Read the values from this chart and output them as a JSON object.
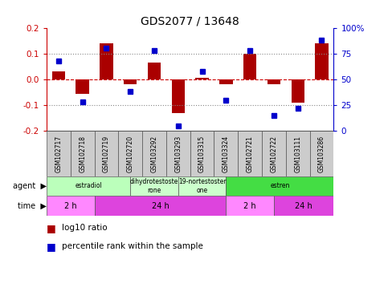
{
  "title": "GDS2077 / 13648",
  "samples": [
    "GSM102717",
    "GSM102718",
    "GSM102719",
    "GSM102720",
    "GSM103292",
    "GSM103293",
    "GSM103315",
    "GSM103324",
    "GSM102721",
    "GSM102722",
    "GSM103111",
    "GSM103286"
  ],
  "log10_ratio": [
    0.03,
    -0.055,
    0.14,
    -0.02,
    0.065,
    -0.13,
    0.005,
    -0.02,
    0.1,
    -0.02,
    -0.09,
    0.14
  ],
  "percentile": [
    68,
    28,
    80,
    38,
    78,
    5,
    58,
    30,
    78,
    15,
    22,
    88
  ],
  "ylim": [
    -0.2,
    0.2
  ],
  "yticks_left": [
    -0.2,
    -0.1,
    0.0,
    0.1,
    0.2
  ],
  "yticks_right": [
    0,
    25,
    50,
    75,
    100
  ],
  "bar_color": "#aa0000",
  "dot_color": "#0000cc",
  "bg_color": "#ffffff",
  "ytick_left_color": "#cc0000",
  "ytick_right_color": "#0000cc",
  "legend_red": "log10 ratio",
  "legend_blue": "percentile rank within the sample",
  "agent_data": [
    [
      0,
      3.5,
      "estradiol",
      "#bbffbb"
    ],
    [
      3.5,
      5.5,
      "dihydrotestoste\nrone",
      "#ccffcc"
    ],
    [
      5.5,
      7.5,
      "19-nortestoster\none",
      "#ccffcc"
    ],
    [
      7.5,
      12.0,
      "estren",
      "#44dd44"
    ]
  ],
  "time_data": [
    [
      0,
      2.0,
      "2 h",
      "#ff88ff"
    ],
    [
      2.0,
      7.5,
      "24 h",
      "#dd44dd"
    ],
    [
      7.5,
      9.5,
      "2 h",
      "#ff88ff"
    ],
    [
      9.5,
      12.0,
      "24 h",
      "#dd44dd"
    ]
  ]
}
